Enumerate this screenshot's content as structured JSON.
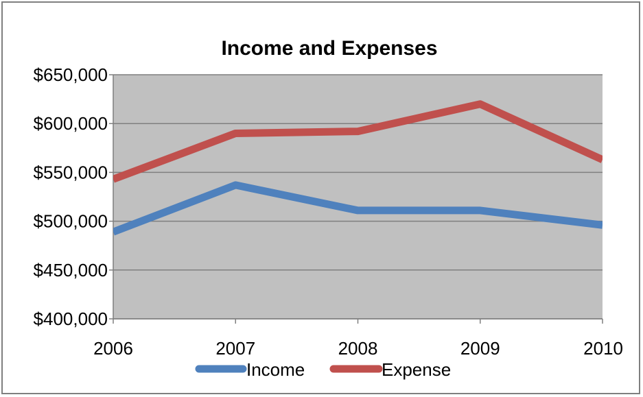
{
  "chart_data": {
    "type": "line",
    "title": "Income and Expenses",
    "xlabel": "",
    "ylabel": "",
    "categories": [
      "2006",
      "2007",
      "2008",
      "2009",
      "2010"
    ],
    "series": [
      {
        "name": "Income",
        "values": [
          489000,
          537000,
          511000,
          511000,
          496000
        ],
        "color": "#4f81bd"
      },
      {
        "name": "Expense",
        "values": [
          543000,
          590000,
          592000,
          620000,
          563000
        ],
        "color": "#c0504d"
      }
    ],
    "ylim": [
      400000,
      650000
    ],
    "y_ticks": [
      {
        "value": 400000,
        "label": "$400,000"
      },
      {
        "value": 450000,
        "label": "$450,000"
      },
      {
        "value": 500000,
        "label": "$500,000"
      },
      {
        "value": 550000,
        "label": "$550,000"
      },
      {
        "value": 600000,
        "label": "$600,000"
      },
      {
        "value": 650000,
        "label": "$650,000"
      }
    ],
    "grid": true,
    "plot_background": "#c0c0c0",
    "legend_position": "bottom"
  }
}
